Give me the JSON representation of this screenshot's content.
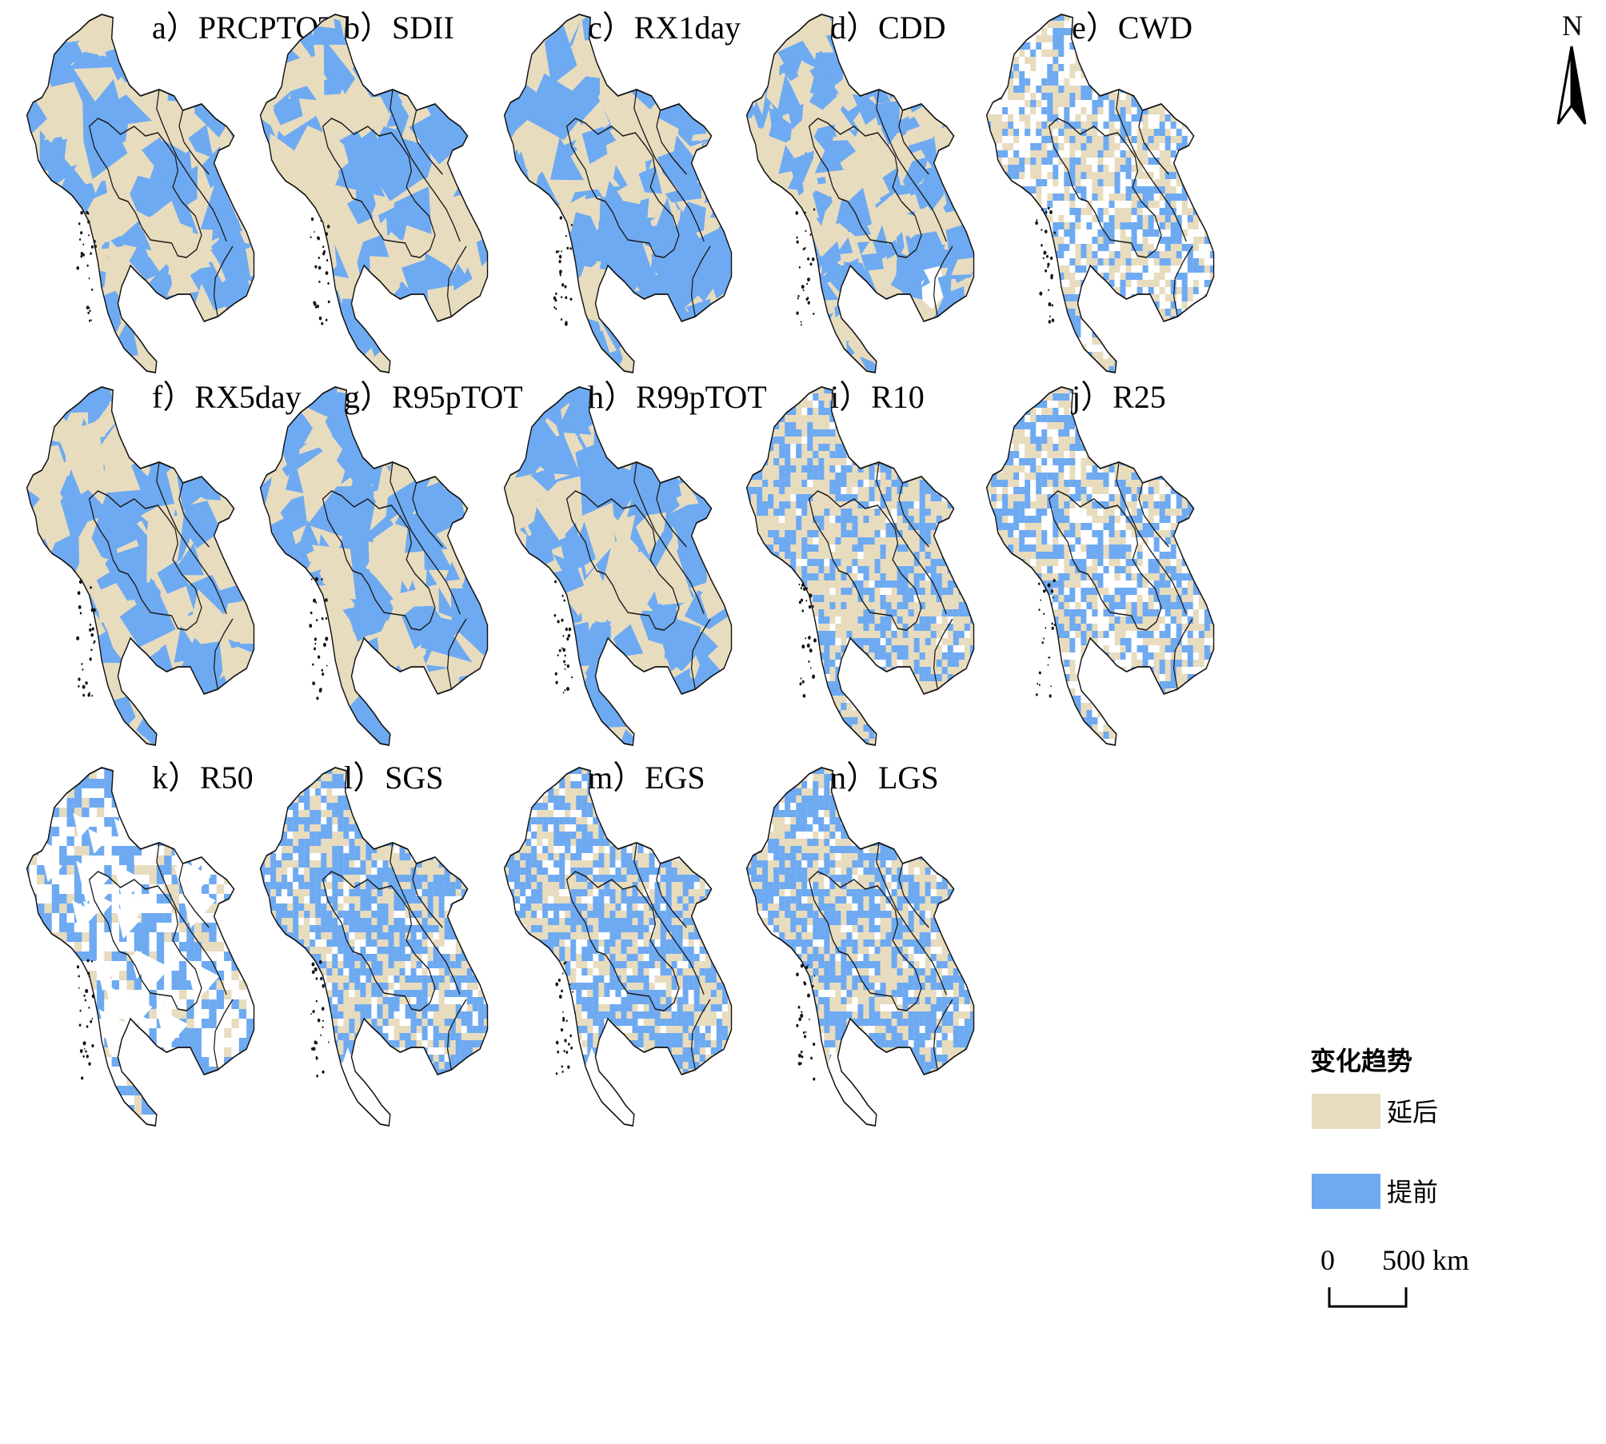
{
  "panels": [
    {
      "id": "a",
      "label": "a）PRCPTOT",
      "pattern": "large",
      "blue": 0.5,
      "white": 0.0,
      "seed": 11
    },
    {
      "id": "b",
      "label": "b）SDII",
      "pattern": "large",
      "blue": 0.55,
      "white": 0.0,
      "seed": 23
    },
    {
      "id": "c",
      "label": "c）RX1day",
      "pattern": "large",
      "blue": 0.6,
      "white": 0.0,
      "seed": 37
    },
    {
      "id": "d",
      "label": "d）CDD",
      "pattern": "mixed",
      "blue": 0.55,
      "white": 0.01,
      "seed": 41
    },
    {
      "id": "e",
      "label": "e）CWD",
      "pattern": "fine",
      "blue": 0.3,
      "white": 0.3,
      "seed": 53
    },
    {
      "id": "f",
      "label": "f）RX5day",
      "pattern": "large",
      "blue": 0.6,
      "white": 0.0,
      "seed": 67
    },
    {
      "id": "g",
      "label": "g）R95pTOT",
      "pattern": "large",
      "blue": 0.65,
      "white": 0.0,
      "seed": 71
    },
    {
      "id": "h",
      "label": "h）R99pTOT",
      "pattern": "large",
      "blue": 0.7,
      "white": 0.0,
      "seed": 83
    },
    {
      "id": "i",
      "label": "i）R10",
      "pattern": "fine",
      "blue": 0.38,
      "white": 0.06,
      "seed": 97
    },
    {
      "id": "j",
      "label": "j）R25",
      "pattern": "fine",
      "blue": 0.38,
      "white": 0.22,
      "seed": 101
    },
    {
      "id": "k",
      "label": "k）R50",
      "pattern": "sparse",
      "blue": 0.35,
      "white": 0.45,
      "seed": 113
    },
    {
      "id": "l",
      "label": "l）SGS",
      "pattern": "fine",
      "blue": 0.5,
      "white": 0.12,
      "seed": 127
    },
    {
      "id": "m",
      "label": "m）EGS",
      "pattern": "fine",
      "blue": 0.5,
      "white": 0.12,
      "seed": 131
    },
    {
      "id": "n",
      "label": "n）LGS",
      "pattern": "fine",
      "blue": 0.5,
      "white": 0.1,
      "seed": 139
    }
  ],
  "legend": {
    "title": "变化趋势",
    "items": [
      {
        "label": "延后",
        "color": "#e8dcbf"
      },
      {
        "label": "提前",
        "color": "#6eaaf2"
      }
    ]
  },
  "scale_bar": {
    "start_label": "0",
    "end_label": "500 km"
  },
  "north_arrow": {
    "label": "N"
  },
  "colors": {
    "delayed": "#e8dcbf",
    "advanced": "#6eaaf2",
    "no_data": "#ffffff",
    "border": "#1a1a1a",
    "coast": "#111111"
  }
}
